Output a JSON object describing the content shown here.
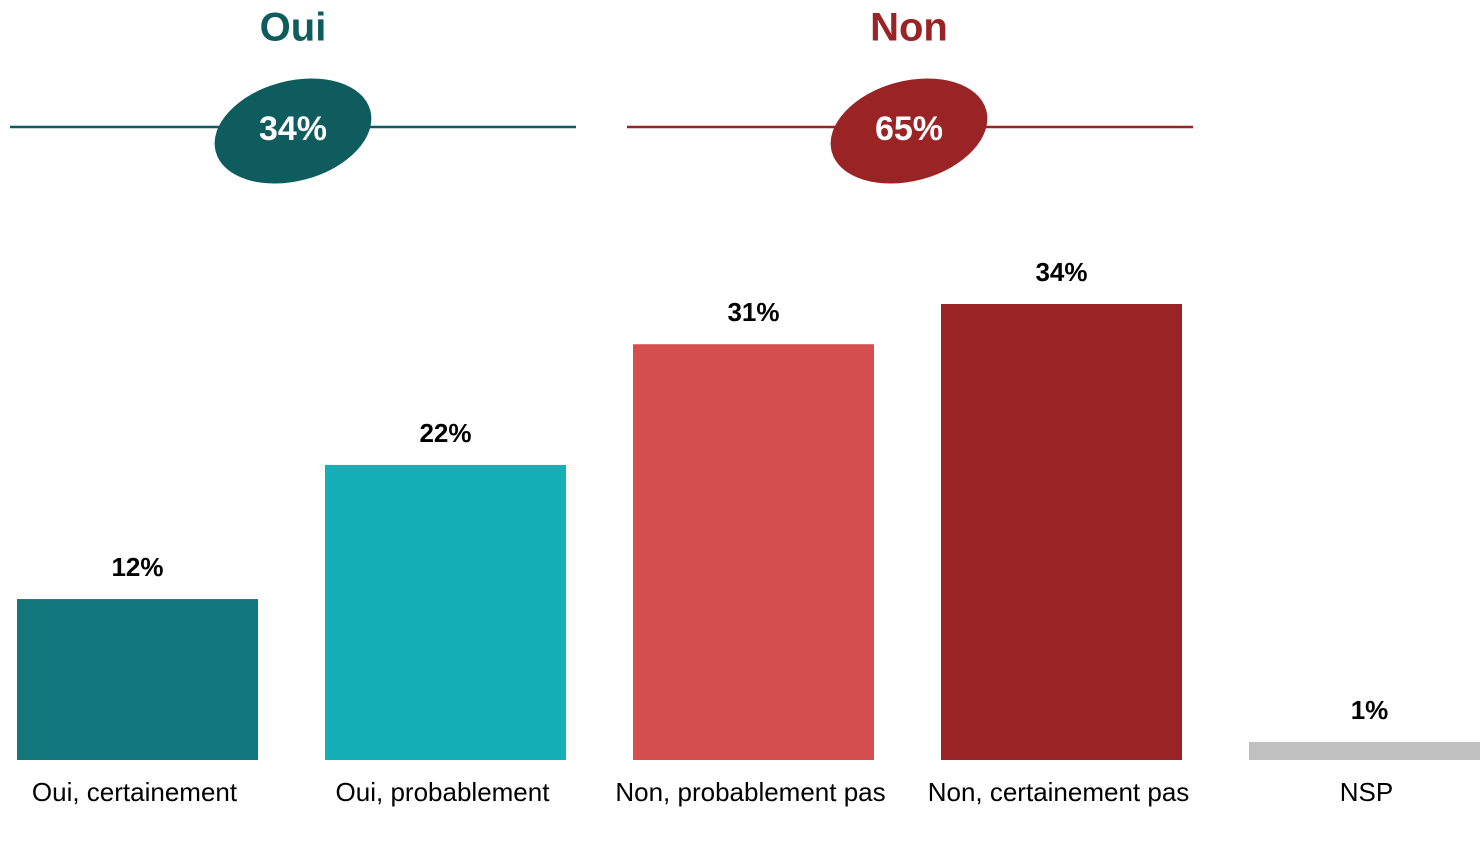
{
  "chart_data": {
    "type": "bar",
    "groups": [
      {
        "name": "Oui",
        "value": 34,
        "value_label": "34%",
        "color": "#0e5c5e"
      },
      {
        "name": "Non",
        "value": 65,
        "value_label": "65%",
        "color": "#9a2325"
      }
    ],
    "categories": [
      "Oui, certainement",
      "Oui, probablement",
      "Non, probablement pas",
      "Non, certainement pas",
      "NSP"
    ],
    "values": [
      12,
      22,
      31,
      34,
      1
    ],
    "value_labels": [
      "12%",
      "22%",
      "31%",
      "34%",
      "1%"
    ],
    "colors": [
      "#12777c",
      "#13b0b7",
      "#d64e50",
      "#9a2325",
      "#c0c0c0"
    ]
  }
}
